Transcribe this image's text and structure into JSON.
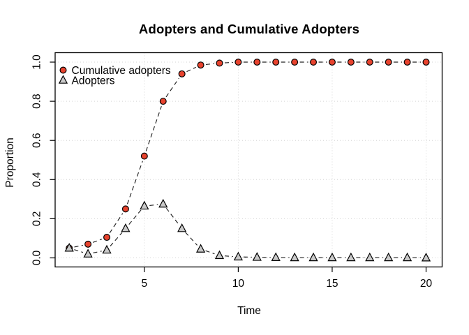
{
  "figure": {
    "title": "Adopters and Cumulative Adopters",
    "x_axis_label": "Time",
    "y_axis_label": "Proportion"
  },
  "colors": {
    "background": "#ffffff",
    "axis": "#000000",
    "text": "#000000",
    "grid": "#d3d3d3",
    "series_line": "#202020",
    "cumulative_marker_fill": "#e7432e",
    "adopters_marker_fill": "#c9c9c9",
    "marker_stroke": "#000000"
  },
  "chart_data": {
    "type": "line",
    "title": "Adopters and Cumulative Adopters",
    "xlabel": "Time",
    "ylabel": "Proportion",
    "x": [
      1,
      2,
      3,
      4,
      5,
      6,
      7,
      8,
      9,
      10,
      11,
      12,
      13,
      14,
      15,
      16,
      17,
      18,
      19,
      20
    ],
    "series": [
      {
        "name": "Cumulative adopters",
        "marker": "circle",
        "line_style": "dashed",
        "values": [
          0.05,
          0.07,
          0.105,
          0.25,
          0.52,
          0.8,
          0.94,
          0.985,
          0.995,
          1.0,
          1.0,
          1.0,
          1.0,
          1.0,
          1.0,
          1.0,
          1.0,
          1.0,
          1.0,
          1.0
        ]
      },
      {
        "name": "Adopters",
        "marker": "triangle",
        "line_style": "dashed",
        "values": [
          0.05,
          0.02,
          0.04,
          0.15,
          0.265,
          0.275,
          0.15,
          0.045,
          0.012,
          0.005,
          0.003,
          0.002,
          0.001,
          0.001,
          0.001,
          0.001,
          0.001,
          0.001,
          0.001,
          0.0
        ]
      }
    ],
    "x_ticks": [
      5,
      10,
      15,
      20
    ],
    "y_ticks": [
      0.0,
      0.2,
      0.4,
      0.6,
      0.8,
      1.0
    ],
    "y_tick_labels": [
      "0.0",
      "0.2",
      "0.4",
      "0.6",
      "0.8",
      "1.0"
    ],
    "xlim": [
      1,
      20
    ],
    "ylim": [
      0,
      1
    ],
    "grid": true,
    "grid_style": "dotted",
    "legend_position": "top-left",
    "legend": [
      "Cumulative adopters",
      "Adopters"
    ]
  }
}
